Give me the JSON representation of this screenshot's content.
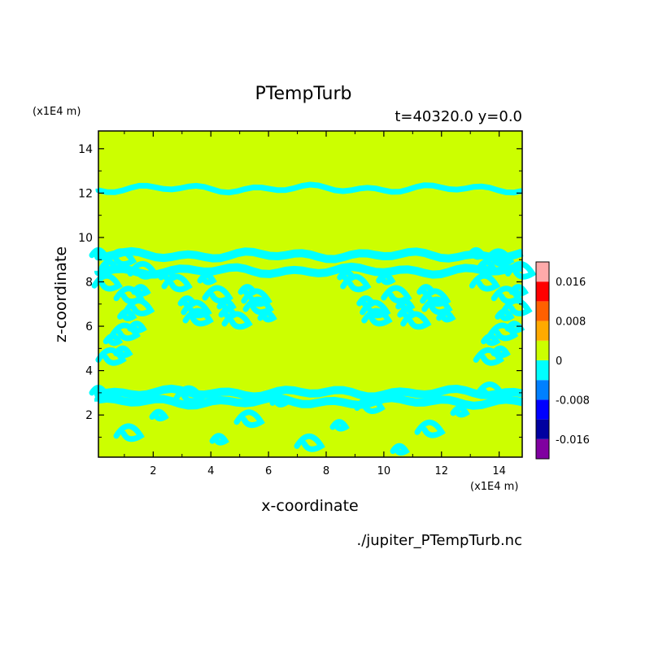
{
  "chart_data": {
    "type": "heatmap",
    "title": "PTempTurb",
    "subtitle": "t=40320.0 y=0.0",
    "xlabel": "x-coordinate",
    "ylabel": "z-coordinate",
    "x_unit": "(x1E4 m)",
    "y_unit": "(x1E4 m)",
    "source_file": "./jupiter_PTempTurb.nc",
    "xlim": [
      0.1,
      14.8
    ],
    "ylim": [
      0.1,
      14.8
    ],
    "x_ticks": [
      2,
      4,
      6,
      8,
      10,
      12,
      14
    ],
    "y_ticks": [
      2,
      4,
      6,
      8,
      10,
      12,
      14
    ],
    "colorbar": {
      "levels": [
        {
          "color": "#8000a0"
        },
        {
          "color": "#0000a0"
        },
        {
          "color": "#0000ff"
        },
        {
          "color": "#0080ff"
        },
        {
          "color": "#00ffff"
        },
        {
          "color": "#ccff00"
        },
        {
          "color": "#ffaa00"
        },
        {
          "color": "#ff6000"
        },
        {
          "color": "#ff0000"
        },
        {
          "color": "#ffaaaa"
        }
      ],
      "labels": [
        "0.016",
        "0.008",
        "0",
        "-0.008",
        "-0.016"
      ],
      "label_values": [
        0.016,
        0.008,
        0,
        -0.008,
        -0.016
      ],
      "range": [
        -0.02,
        0.02
      ]
    },
    "background_color": "#ccff00",
    "negative_color": "#00ffff",
    "negative_bands": [
      {
        "z": 12.2
      },
      {
        "z": 9.2
      },
      {
        "z": 8.5
      },
      {
        "z": 3.0
      },
      {
        "z": 2.6
      }
    ],
    "negative_fields": [
      {
        "x": 0.1,
        "z": 0.2,
        "w": 14.7,
        "h": 2.8
      },
      {
        "x": 0.1,
        "z": 4.2,
        "w": 1.6,
        "h": 5.0
      },
      {
        "x": 13.2,
        "z": 4.2,
        "w": 1.6,
        "h": 5.0
      },
      {
        "x": 2.5,
        "z": 6.0,
        "w": 3.5,
        "h": 2.2
      },
      {
        "x": 8.7,
        "z": 6.0,
        "w": 3.5,
        "h": 2.2
      }
    ]
  }
}
